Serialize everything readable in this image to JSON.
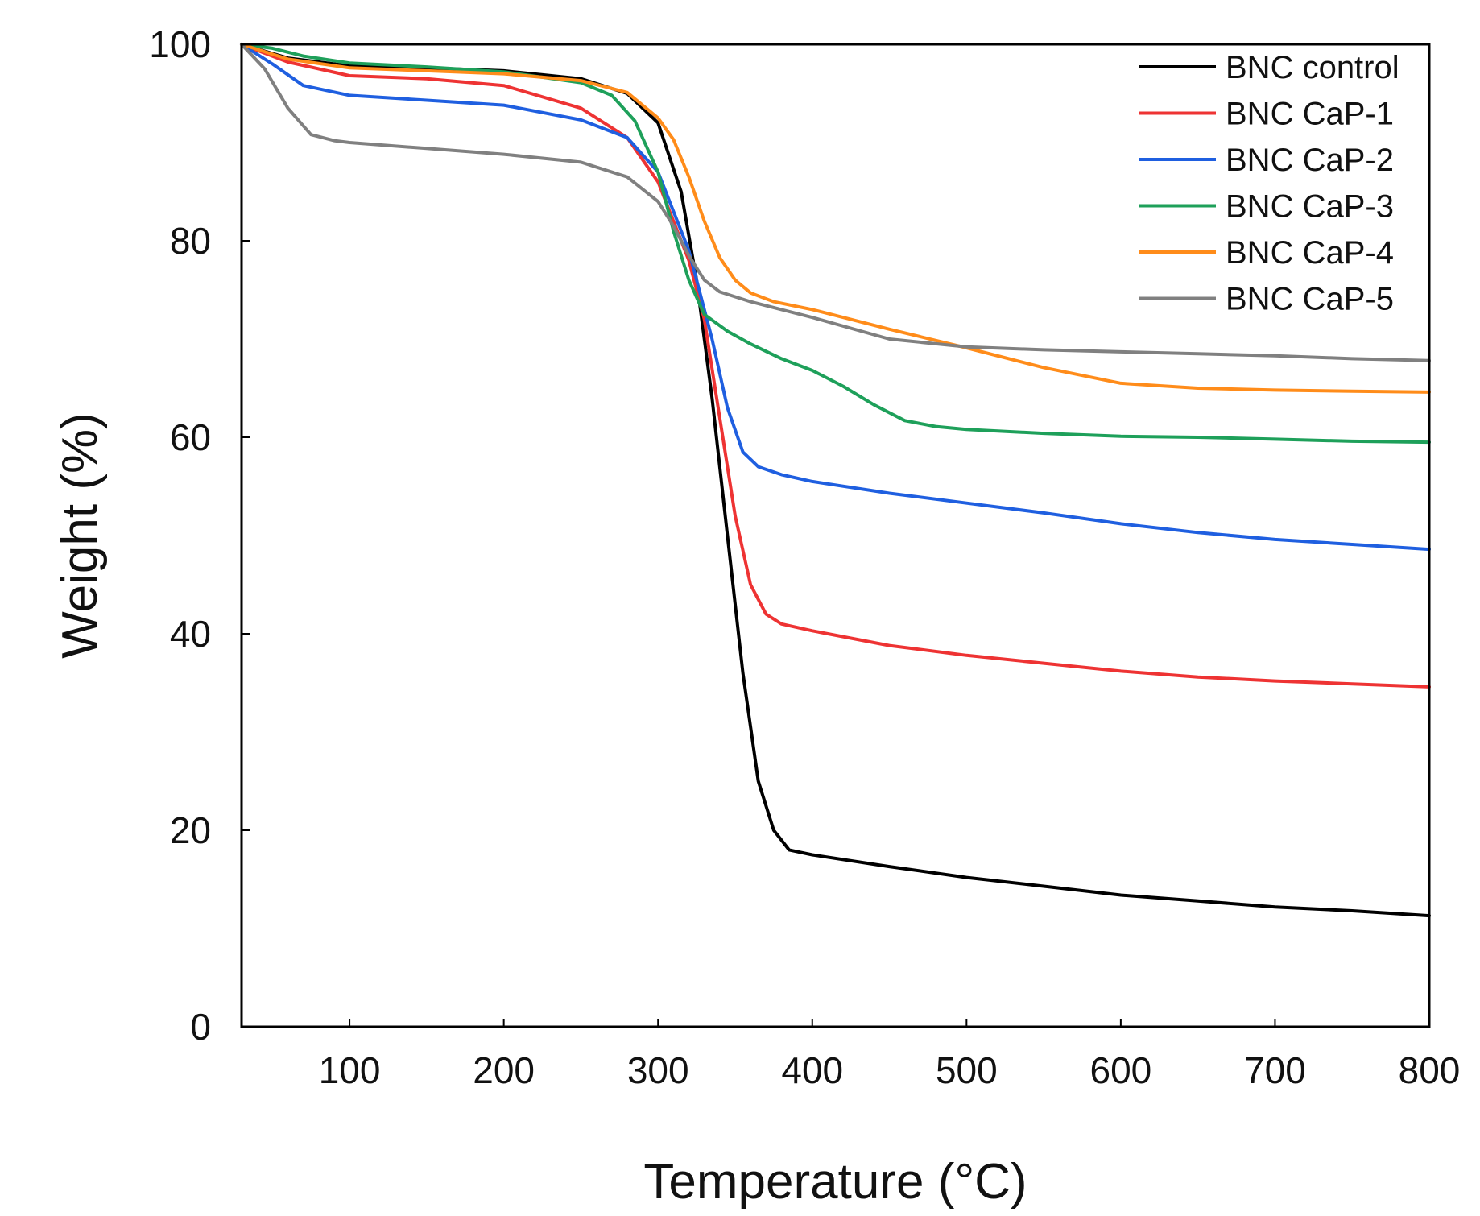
{
  "chart_data": {
    "type": "line",
    "title": "",
    "xlabel": "Temperature (°C)",
    "ylabel": "Weight (%)",
    "xlim": [
      30,
      800
    ],
    "ylim": [
      0,
      100
    ],
    "xticks": [
      100,
      200,
      300,
      400,
      500,
      600,
      700,
      800
    ],
    "yticks": [
      0,
      20,
      40,
      60,
      80,
      100
    ],
    "grid": false,
    "legend_position": "top-right",
    "series": [
      {
        "name": "BNC control",
        "color": "#000000",
        "x": [
          30,
          60,
          100,
          150,
          200,
          250,
          280,
          300,
          315,
          325,
          335,
          345,
          355,
          365,
          375,
          385,
          400,
          450,
          500,
          550,
          600,
          650,
          700,
          750,
          800
        ],
        "y": [
          100,
          98.6,
          97.8,
          97.6,
          97.3,
          96.5,
          95,
          92,
          85,
          76,
          64,
          50,
          36,
          25,
          20,
          18,
          17.5,
          16.3,
          15.2,
          14.3,
          13.4,
          12.8,
          12.2,
          11.8,
          11.3
        ]
      },
      {
        "name": "BNC CaP-1",
        "color": "#ee3333",
        "x": [
          30,
          60,
          100,
          150,
          200,
          250,
          280,
          300,
          320,
          330,
          340,
          350,
          360,
          370,
          380,
          400,
          450,
          500,
          550,
          600,
          650,
          700,
          750,
          800
        ],
        "y": [
          100,
          98.2,
          96.8,
          96.5,
          95.8,
          93.5,
          90.5,
          86,
          78,
          72,
          62,
          52,
          45,
          42,
          41,
          40.3,
          38.8,
          37.8,
          37,
          36.2,
          35.6,
          35.2,
          34.9,
          34.6
        ]
      },
      {
        "name": "BNC CaP-2",
        "color": "#1f5fe0",
        "x": [
          30,
          50,
          70,
          100,
          150,
          200,
          250,
          280,
          300,
          320,
          335,
          345,
          355,
          365,
          380,
          400,
          450,
          500,
          550,
          600,
          650,
          700,
          750,
          800
        ],
        "y": [
          100,
          98,
          95.8,
          94.8,
          94.3,
          93.8,
          92.3,
          90.5,
          87,
          79,
          70,
          63,
          58.5,
          57,
          56.2,
          55.5,
          54.3,
          53.3,
          52.3,
          51.2,
          50.3,
          49.6,
          49.1,
          48.6
        ]
      },
      {
        "name": "BNC CaP-3",
        "color": "#1ea05a",
        "x": [
          30,
          50,
          70,
          100,
          150,
          200,
          250,
          270,
          285,
          300,
          310,
          320,
          330,
          345,
          360,
          380,
          400,
          420,
          440,
          460,
          480,
          500,
          550,
          600,
          650,
          700,
          750,
          800
        ],
        "y": [
          100,
          99.6,
          98.8,
          98.1,
          97.7,
          97.2,
          96.1,
          94.8,
          92.2,
          87,
          81,
          76,
          72.5,
          70.8,
          69.5,
          68,
          66.8,
          65.2,
          63.3,
          61.7,
          61.1,
          60.8,
          60.4,
          60.1,
          60,
          59.8,
          59.6,
          59.5
        ]
      },
      {
        "name": "BNC CaP-4",
        "color": "#ff8c1a",
        "x": [
          30,
          60,
          100,
          150,
          200,
          250,
          280,
          300,
          310,
          320,
          330,
          340,
          350,
          360,
          375,
          400,
          450,
          500,
          550,
          600,
          650,
          700,
          750,
          800
        ],
        "y": [
          100,
          98.5,
          97.6,
          97.3,
          97,
          96.3,
          95.1,
          92.5,
          90.3,
          86.5,
          82,
          78.3,
          76,
          74.7,
          73.8,
          73,
          71,
          69.1,
          67.1,
          65.5,
          65,
          64.8,
          64.7,
          64.6
        ]
      },
      {
        "name": "BNC CaP-5",
        "color": "#808080",
        "x": [
          30,
          45,
          60,
          75,
          90,
          100,
          150,
          200,
          250,
          280,
          300,
          310,
          320,
          330,
          340,
          360,
          380,
          400,
          450,
          500,
          550,
          600,
          650,
          700,
          750,
          800
        ],
        "y": [
          100,
          97.5,
          93.5,
          90.8,
          90.2,
          90,
          89.4,
          88.8,
          88,
          86.5,
          84,
          81.5,
          78.5,
          76,
          74.8,
          73.8,
          73,
          72.2,
          70,
          69.2,
          68.9,
          68.7,
          68.5,
          68.3,
          68,
          67.8
        ]
      }
    ]
  }
}
